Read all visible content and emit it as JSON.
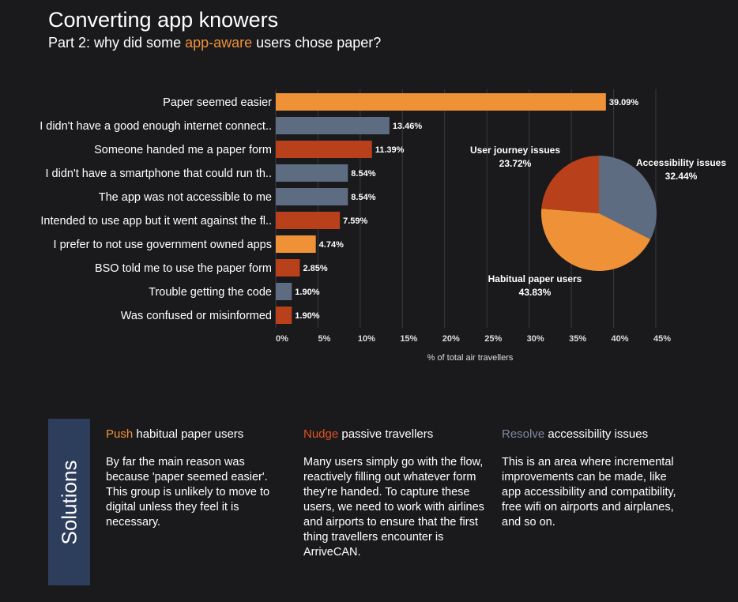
{
  "header": {
    "title": "Converting app knowers",
    "subtitle_pre": "Part 2: why did some ",
    "subtitle_highlight": "app-aware",
    "subtitle_post": " users chose paper?"
  },
  "colors": {
    "orange": "#ef9237",
    "rust": "#b8401a",
    "slate": "#5e6c82",
    "navy": "#2d3d5c"
  },
  "chart_data": [
    {
      "type": "bar",
      "orientation": "horizontal",
      "categories": [
        "Paper seemed easier",
        "I didn't have a good enough internet connect..",
        "Someone handed me a paper form",
        "I didn't have a smartphone that could run th..",
        "The app was not accessible to me",
        "Intended to use app but it went against the fl..",
        "I prefer to not use government owned apps",
        "BSO told me to use the paper form",
        "Trouble getting the code",
        "Was confused or misinformed"
      ],
      "values": [
        39.09,
        13.46,
        11.39,
        8.54,
        8.54,
        7.59,
        4.74,
        2.85,
        1.9,
        1.9
      ],
      "value_labels": [
        "39.09%",
        "13.46%",
        "11.39%",
        "8.54%",
        "8.54%",
        "7.59%",
        "4.74%",
        "2.85%",
        "1.90%",
        "1.90%"
      ],
      "bar_colors": [
        "#ef9237",
        "#5e6c82",
        "#b8401a",
        "#5e6c82",
        "#5e6c82",
        "#b8401a",
        "#ef9237",
        "#b8401a",
        "#5e6c82",
        "#b8401a"
      ],
      "xlabel": "% of total air travellers",
      "xlim": [
        0,
        45
      ],
      "xticks": [
        0,
        5,
        10,
        15,
        20,
        25,
        30,
        35,
        40,
        45
      ],
      "xtick_labels": [
        "0%",
        "5%",
        "10%",
        "15%",
        "20%",
        "25%",
        "30%",
        "35%",
        "40%",
        "45%"
      ],
      "grid": "vertical"
    },
    {
      "type": "pie",
      "slices": [
        {
          "label": "Accessibility issues",
          "value": 32.44,
          "value_label": "32.44%",
          "color": "#5e6c82"
        },
        {
          "label": "Habitual paper users",
          "value": 43.83,
          "value_label": "43.83%",
          "color": "#ef9237"
        },
        {
          "label": "User journey issues",
          "value": 23.72,
          "value_label": "23.72%",
          "color": "#b8401a"
        }
      ]
    }
  ],
  "solutions": {
    "label": "Solutions",
    "columns": [
      {
        "keyword": "Push",
        "heading_rest": " habitual paper users",
        "body": "By far the main reason was because 'paper seemed easier'. This group is unlikely to move to digital unless they feel it is necessary."
      },
      {
        "keyword": "Nudge",
        "heading_rest": " passive travellers",
        "body": "Many users simply go with the flow, reactively filling out whatever form they're handed. To capture these users, we need to work with airlines and airports to ensure that the first thing travellers encounter is ArriveCAN."
      },
      {
        "keyword": "Resolve",
        "heading_rest": " accessibility issues",
        "body": "This is an area where incremental improvements can be made, like app accessibility and compatibility, free wifi on airports and airplanes, and so on."
      }
    ]
  }
}
